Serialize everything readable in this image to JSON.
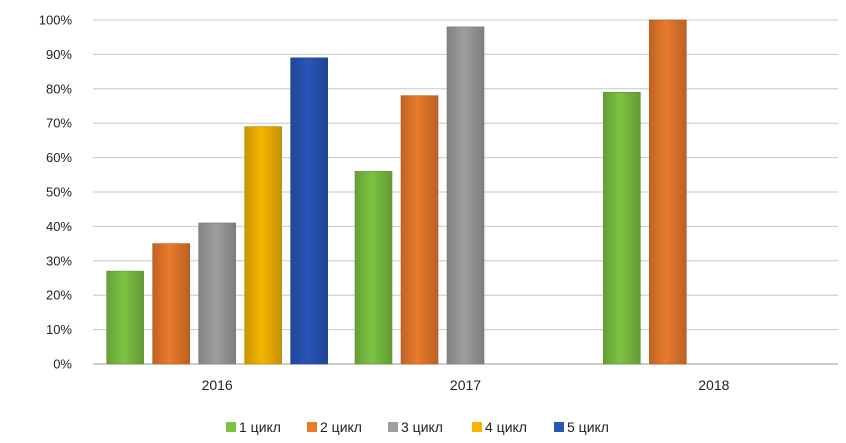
{
  "chart_data": {
    "type": "bar",
    "title": "",
    "xlabel": "",
    "ylabel": "",
    "categories": [
      "2016",
      "2017",
      "2018"
    ],
    "ylim": [
      0,
      100
    ],
    "yticks": [
      0,
      10,
      20,
      30,
      40,
      50,
      60,
      70,
      80,
      90,
      100
    ],
    "ytick_labels": [
      "0%",
      "10%",
      "20%",
      "30%",
      "40%",
      "50%",
      "60%",
      "70%",
      "80%",
      "90%",
      "100%"
    ],
    "grid": true,
    "legend_position": "bottom",
    "series": [
      {
        "name": "1 цикл",
        "color": "#7dc242",
        "values": [
          27,
          56,
          79
        ]
      },
      {
        "name": "2 цикл",
        "color": "#e97a2c",
        "values": [
          35,
          78,
          100
        ]
      },
      {
        "name": "3 цикл",
        "color": "#9e9e9e",
        "values": [
          41,
          98,
          null
        ]
      },
      {
        "name": "4 цикл",
        "color": "#f5b400",
        "values": [
          69,
          null,
          null
        ]
      },
      {
        "name": "5 цикл",
        "color": "#2855b8",
        "values": [
          89,
          null,
          null
        ]
      }
    ]
  }
}
